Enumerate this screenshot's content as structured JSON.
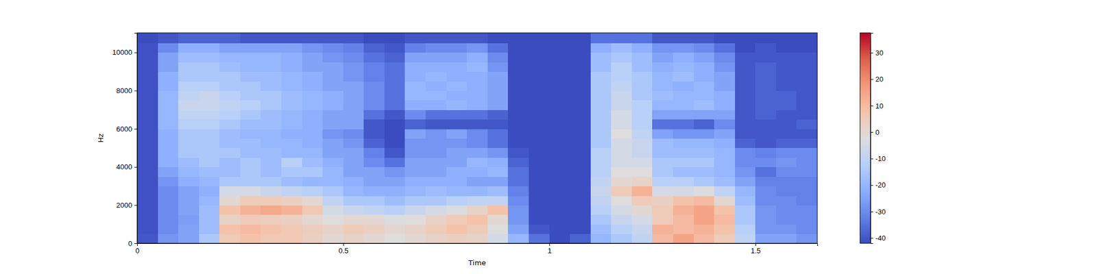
{
  "chart_data": {
    "type": "heatmap",
    "x_label": "Time",
    "y_label": "Hz",
    "xlim": [
      0,
      1.65
    ],
    "ylim": [
      0,
      11025
    ],
    "xticks": [
      0,
      0.5,
      1,
      1.5
    ],
    "yticks": [
      0,
      2000,
      4000,
      6000,
      8000,
      10000
    ],
    "time_edges": [
      0,
      0.05,
      0.1,
      0.15,
      0.2,
      0.25,
      0.3,
      0.35,
      0.4,
      0.45,
      0.5,
      0.55,
      0.6,
      0.65,
      0.7,
      0.75,
      0.8,
      0.85,
      0.9,
      0.95,
      1,
      1.05,
      1.1,
      1.15,
      1.2,
      1.25,
      1.3,
      1.35,
      1.4,
      1.45,
      1.5,
      1.55,
      1.6,
      1.65
    ],
    "freq_edges": [
      0,
      500,
      1000,
      1500,
      2000,
      2500,
      3000,
      3500,
      4000,
      4500,
      5000,
      5500,
      6000,
      6500,
      7000,
      7500,
      8000,
      8500,
      9000,
      9500,
      10000,
      10500,
      11025
    ],
    "cells": [
      [
        -40,
        -28,
        -25,
        -15,
        5,
        8,
        6,
        6,
        3,
        0,
        2,
        0,
        -2,
        0,
        2,
        3,
        2,
        -5,
        -20,
        -35,
        -42,
        -38,
        -20,
        -15,
        -10,
        10,
        15,
        10,
        5,
        -10,
        -25,
        -25,
        -28
      ],
      [
        -41,
        -30,
        -25,
        -18,
        8,
        10,
        8,
        6,
        4,
        2,
        5,
        3,
        0,
        2,
        5,
        8,
        5,
        -2,
        -25,
        -40,
        -42,
        -42,
        -18,
        -12,
        -8,
        12,
        10,
        12,
        8,
        -12,
        -28,
        -28,
        -30
      ],
      [
        -41,
        -30,
        -26,
        -18,
        2,
        5,
        4,
        3,
        0,
        -2,
        0,
        0,
        -3,
        -2,
        2,
        5,
        8,
        0,
        -28,
        -42,
        -42,
        -42,
        -15,
        -8,
        -5,
        5,
        10,
        15,
        10,
        -15,
        -28,
        -30,
        -30
      ],
      [
        -41,
        -30,
        -25,
        -18,
        8,
        12,
        14,
        12,
        6,
        -5,
        -8,
        -10,
        -12,
        -8,
        -5,
        -3,
        2,
        8,
        -28,
        -42,
        -42,
        -42,
        -12,
        -5,
        0,
        5,
        12,
        15,
        8,
        -15,
        -28,
        -30,
        -30
      ],
      [
        -41,
        -30,
        -25,
        -20,
        0,
        5,
        5,
        3,
        0,
        -10,
        -15,
        -15,
        -18,
        -15,
        -15,
        -12,
        -10,
        -10,
        -30,
        -42,
        -42,
        -42,
        -10,
        -2,
        5,
        3,
        8,
        10,
        0,
        -18,
        -30,
        -30,
        -32
      ],
      [
        -41,
        -30,
        -25,
        -22,
        -5,
        -5,
        -8,
        -10,
        -12,
        -15,
        -20,
        -22,
        -22,
        -20,
        -18,
        -20,
        -20,
        -18,
        -32,
        -42,
        -42,
        -42,
        -8,
        5,
        12,
        -5,
        -5,
        -3,
        -10,
        -20,
        -30,
        -32,
        -32
      ],
      [
        -41,
        -28,
        -22,
        -20,
        -15,
        -15,
        -15,
        -18,
        -20,
        -20,
        -22,
        -25,
        -25,
        -22,
        -22,
        -22,
        -25,
        -25,
        -35,
        -42,
        -42,
        -42,
        -10,
        0,
        2,
        -12,
        -12,
        -15,
        -18,
        -25,
        -32,
        -32,
        -32
      ],
      [
        -41,
        -25,
        -20,
        -18,
        -18,
        -15,
        -18,
        -15,
        -15,
        -20,
        -25,
        -25,
        -28,
        -25,
        -25,
        -22,
        -22,
        -20,
        -35,
        -42,
        -42,
        -42,
        -12,
        -2,
        -2,
        -15,
        -18,
        -18,
        -20,
        -28,
        -35,
        -30,
        -30
      ],
      [
        -41,
        -22,
        -18,
        -15,
        -18,
        -15,
        -18,
        -12,
        -18,
        -22,
        -25,
        -30,
        -35,
        -25,
        -25,
        -25,
        -20,
        -22,
        -38,
        -42,
        -42,
        -42,
        -12,
        -5,
        -5,
        -15,
        -15,
        -15,
        -20,
        -30,
        -30,
        -28,
        -30
      ],
      [
        -41,
        -22,
        -15,
        -15,
        -15,
        -18,
        -18,
        -20,
        -20,
        -25,
        -25,
        -32,
        -40,
        -28,
        -28,
        -25,
        -25,
        -28,
        -40,
        -42,
        -42,
        -42,
        -12,
        -5,
        -8,
        -18,
        -18,
        -18,
        -20,
        -30,
        -32,
        -30,
        -30
      ],
      [
        -41,
        -22,
        -15,
        -15,
        -18,
        -18,
        -20,
        -20,
        -22,
        -25,
        -28,
        -38,
        -42,
        -28,
        -28,
        -28,
        -30,
        -35,
        -42,
        -42,
        -42,
        -42,
        -15,
        -5,
        -8,
        -18,
        -20,
        -20,
        -22,
        -38,
        -40,
        -38,
        -38
      ],
      [
        -41,
        -22,
        -15,
        -15,
        -18,
        -20,
        -20,
        -22,
        -22,
        -28,
        -30,
        -40,
        -42,
        -25,
        -28,
        -25,
        -30,
        -35,
        -42,
        -42,
        -42,
        -42,
        -15,
        -2,
        -10,
        -25,
        -28,
        -28,
        -25,
        -40,
        -40,
        -40,
        -40
      ],
      [
        -41,
        -20,
        -12,
        -12,
        -15,
        -18,
        -18,
        -20,
        -22,
        -25,
        -25,
        -40,
        -42,
        -38,
        -40,
        -40,
        -40,
        -40,
        -42,
        -42,
        -42,
        -42,
        -15,
        -5,
        -12,
        -35,
        -35,
        -38,
        -30,
        -40,
        -40,
        -40,
        -38
      ],
      [
        -41,
        -20,
        -10,
        -10,
        -12,
        -15,
        -18,
        -20,
        -22,
        -25,
        -25,
        -35,
        -40,
        -30,
        -35,
        -35,
        -35,
        -38,
        -42,
        -42,
        -42,
        -42,
        -15,
        -5,
        -12,
        -25,
        -25,
        -25,
        -25,
        -40,
        -38,
        -40,
        -40
      ],
      [
        -41,
        -20,
        -8,
        -8,
        -10,
        -12,
        -15,
        -18,
        -20,
        -22,
        -25,
        -30,
        -35,
        -22,
        -22,
        -20,
        -22,
        -25,
        -42,
        -42,
        -42,
        -42,
        -15,
        -8,
        -12,
        -20,
        -20,
        -18,
        -22,
        -40,
        -38,
        -38,
        -40
      ],
      [
        -41,
        -20,
        -10,
        -8,
        -12,
        -15,
        -15,
        -18,
        -20,
        -22,
        -25,
        -30,
        -35,
        -20,
        -20,
        -22,
        -22,
        -25,
        -42,
        -42,
        -42,
        -42,
        -15,
        -8,
        -15,
        -18,
        -20,
        -20,
        -22,
        -40,
        -38,
        -38,
        -40
      ],
      [
        -41,
        -22,
        -12,
        -12,
        -15,
        -15,
        -18,
        -20,
        -22,
        -25,
        -25,
        -30,
        -35,
        -20,
        -22,
        -20,
        -22,
        -25,
        -42,
        -42,
        -42,
        -42,
        -15,
        -10,
        -15,
        -20,
        -22,
        -20,
        -25,
        -40,
        -38,
        -40,
        -40
      ],
      [
        -41,
        -22,
        -15,
        -15,
        -15,
        -18,
        -18,
        -20,
        -22,
        -25,
        -28,
        -32,
        -35,
        -22,
        -20,
        -22,
        -22,
        -25,
        -42,
        -42,
        -42,
        -42,
        -15,
        -12,
        -15,
        -20,
        -18,
        -22,
        -25,
        -40,
        -38,
        -40,
        -40
      ],
      [
        -41,
        -25,
        -15,
        -15,
        -18,
        -20,
        -20,
        -22,
        -25,
        -25,
        -28,
        -32,
        -35,
        -22,
        -22,
        -22,
        -20,
        -28,
        -42,
        -42,
        -42,
        -42,
        -18,
        -12,
        -18,
        -22,
        -20,
        -22,
        -28,
        -40,
        -38,
        -40,
        -40
      ],
      [
        -41,
        -25,
        -18,
        -18,
        -20,
        -20,
        -20,
        -22,
        -25,
        -28,
        -30,
        -35,
        -38,
        -25,
        -25,
        -25,
        -22,
        -30,
        -42,
        -42,
        -42,
        -42,
        -18,
        -15,
        -18,
        -25,
        -22,
        -25,
        -30,
        -40,
        -40,
        -40,
        -40
      ],
      [
        -41,
        -30,
        -22,
        -22,
        -25,
        -25,
        -25,
        -25,
        -28,
        -30,
        -32,
        -38,
        -40,
        -32,
        -30,
        -30,
        -28,
        -35,
        -42,
        -42,
        -42,
        -42,
        -22,
        -18,
        -22,
        -28,
        -28,
        -30,
        -35,
        -42,
        -40,
        -42,
        -42
      ],
      [
        -42,
        -40,
        -38,
        -38,
        -38,
        -40,
        -40,
        -40,
        -40,
        -40,
        -40,
        -42,
        -42,
        -40,
        -40,
        -40,
        -40,
        -42,
        -42,
        -42,
        -42,
        -42,
        -35,
        -35,
        -35,
        -40,
        -40,
        -40,
        -42,
        -42,
        -42,
        -42,
        -42
      ]
    ],
    "colorbar": {
      "range": [
        -42,
        37.5
      ],
      "ticks": [
        -40,
        -30,
        -20,
        -10,
        0,
        10,
        20,
        30
      ]
    }
  }
}
